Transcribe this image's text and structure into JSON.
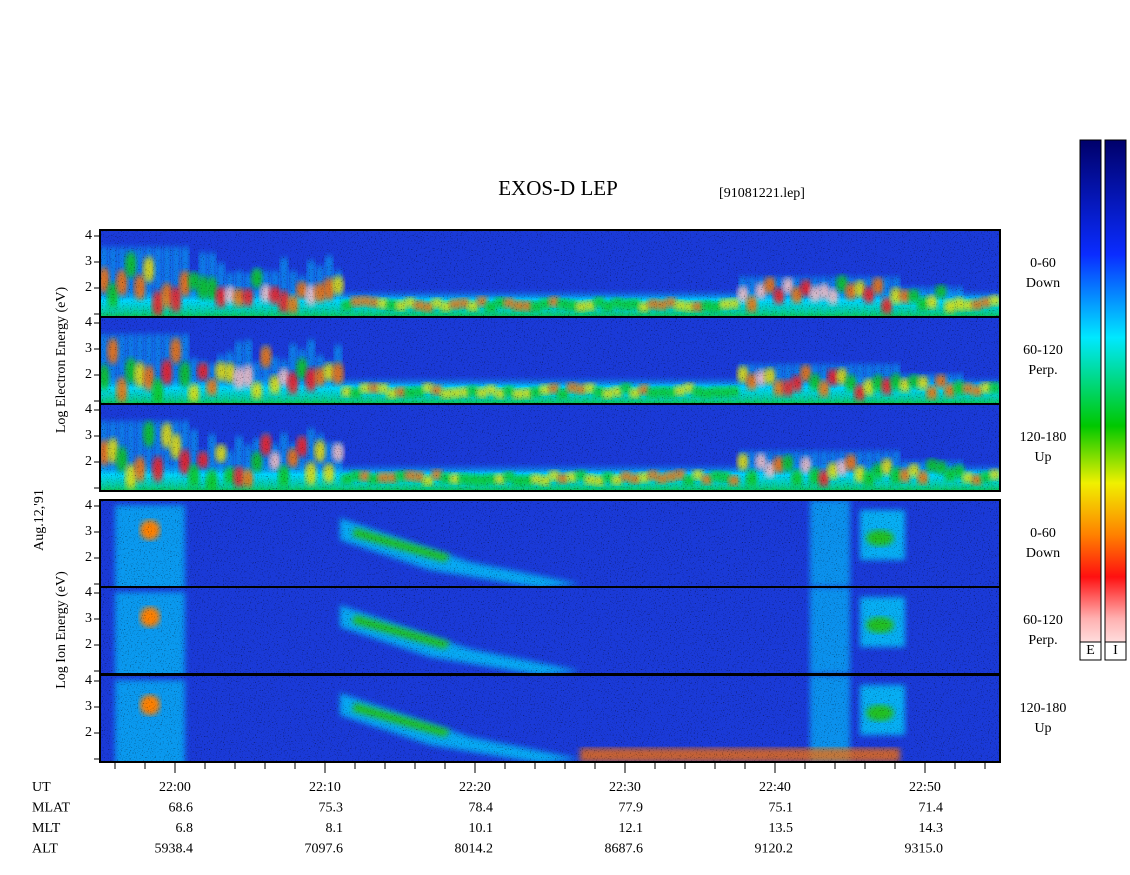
{
  "title": "EXOS-D LEP",
  "file": "[91081221.lep]",
  "date": "Aug.12,'91",
  "electron_axis_label": "Log Electron Energy (eV)",
  "ion_axis_label": "Log Ion Energy (eV)",
  "energy_ticks": [
    "4",
    "3",
    "2"
  ],
  "panels": [
    {
      "species": "electron",
      "angle": "0-60",
      "direction": "Down"
    },
    {
      "species": "electron",
      "angle": "60-120",
      "direction": "Perp."
    },
    {
      "species": "electron",
      "angle": "120-180",
      "direction": "Up"
    },
    {
      "species": "ion",
      "angle": "0-60",
      "direction": "Down"
    },
    {
      "species": "ion",
      "angle": "60-120",
      "direction": "Perp."
    },
    {
      "species": "ion",
      "angle": "120-180",
      "direction": "Up"
    }
  ],
  "color_bars": [
    "E",
    "I"
  ],
  "table": {
    "rows": [
      [
        "UT",
        "22:00",
        "22:10",
        "22:20",
        "22:30",
        "22:40",
        "22:50"
      ],
      [
        "MLAT",
        "68.6",
        "75.3",
        "78.4",
        "77.9",
        "75.1",
        "71.4"
      ],
      [
        "MLT",
        "6.8",
        "8.1",
        "10.1",
        "12.1",
        "13.5",
        "14.3"
      ],
      [
        "ALT",
        "5938.4",
        "7097.6",
        "8014.2",
        "8687.6",
        "9120.2",
        "9315.0"
      ]
    ]
  }
}
